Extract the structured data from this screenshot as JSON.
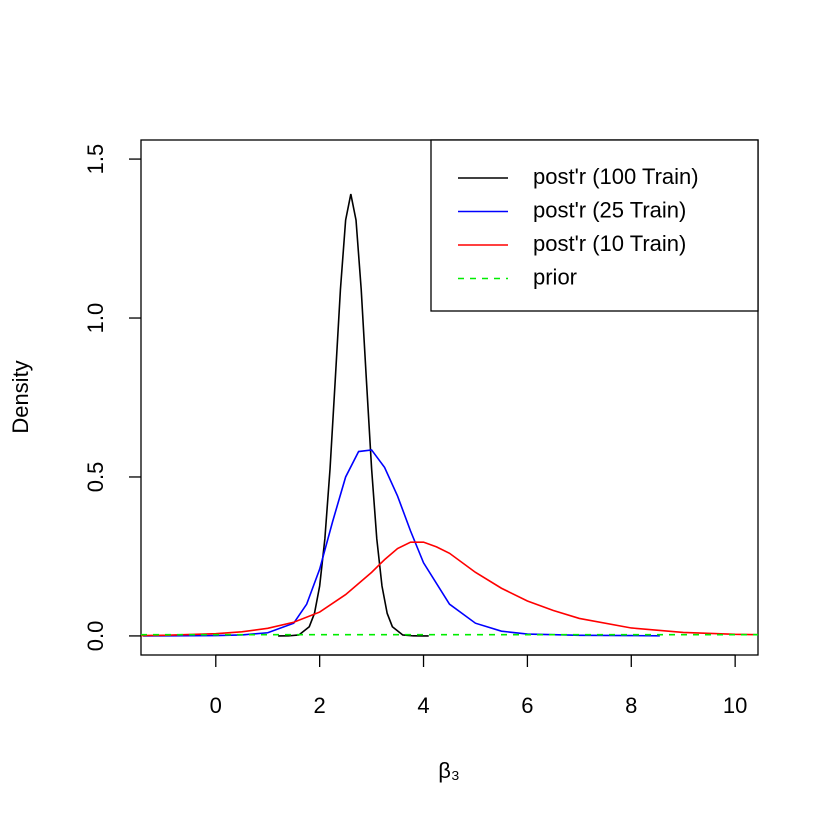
{
  "chart_data": {
    "type": "line",
    "xlabel": "β₃",
    "ylabel": "Density",
    "xlim": [
      -1.44,
      10.44
    ],
    "ylim": [
      -0.06,
      1.56
    ],
    "xticks": [
      0,
      2,
      4,
      6,
      8,
      10
    ],
    "yticks": [
      {
        "value": 0,
        "label": "0.0"
      },
      {
        "value": 0.5,
        "label": "0.5"
      },
      {
        "value": 1,
        "label": "1.0"
      },
      {
        "value": 1.5,
        "label": "1.5"
      }
    ],
    "legend": "top-right",
    "series": [
      {
        "name": "post'r (100 Train)",
        "color": "#000000",
        "linestyle": "solid",
        "x": [
          1.2,
          1.4,
          1.6,
          1.8,
          1.9,
          2.0,
          2.1,
          2.2,
          2.3,
          2.4,
          2.5,
          2.6,
          2.7,
          2.8,
          2.9,
          3.0,
          3.1,
          3.2,
          3.3,
          3.4,
          3.6,
          3.8,
          4.0,
          4.1
        ],
        "values": [
          0,
          0.0002,
          0.003,
          0.029,
          0.071,
          0.157,
          0.305,
          0.526,
          0.805,
          1.09,
          1.308,
          1.39,
          1.308,
          1.09,
          0.805,
          0.526,
          0.305,
          0.157,
          0.071,
          0.029,
          0.003,
          0.0002,
          0,
          0
        ]
      },
      {
        "name": "post'r (25 Train)",
        "color": "#0000ff",
        "linestyle": "solid",
        "x": [
          -1.4,
          0,
          0.5,
          1,
          1.5,
          1.75,
          2,
          2.25,
          2.5,
          2.75,
          3,
          3.25,
          3.5,
          3.75,
          4,
          4.5,
          5,
          5.5,
          6,
          7,
          8,
          8.55
        ],
        "values": [
          0,
          0.001,
          0.003,
          0.01,
          0.04,
          0.1,
          0.21,
          0.36,
          0.5,
          0.58,
          0.585,
          0.53,
          0.44,
          0.33,
          0.23,
          0.1,
          0.04,
          0.015,
          0.006,
          0.002,
          0.001,
          0.0005
        ]
      },
      {
        "name": "post'r (10 Train)",
        "color": "#ff0000",
        "linestyle": "solid",
        "x": [
          -1.44,
          -1,
          0,
          0.5,
          1,
          1.5,
          2,
          2.5,
          3,
          3.25,
          3.5,
          3.75,
          4,
          4.25,
          4.5,
          5,
          5.5,
          6,
          6.5,
          7,
          8,
          9,
          10,
          10.44
        ],
        "values": [
          0.001,
          0.002,
          0.007,
          0.013,
          0.024,
          0.043,
          0.075,
          0.13,
          0.2,
          0.24,
          0.275,
          0.295,
          0.295,
          0.28,
          0.26,
          0.2,
          0.15,
          0.11,
          0.08,
          0.055,
          0.025,
          0.011,
          0.005,
          0.004
        ]
      },
      {
        "name": "prior",
        "color": "#00ee00",
        "linestyle": "dashed",
        "x": [
          -1.44,
          10.44
        ],
        "values": [
          0.004,
          0.004
        ]
      }
    ]
  }
}
